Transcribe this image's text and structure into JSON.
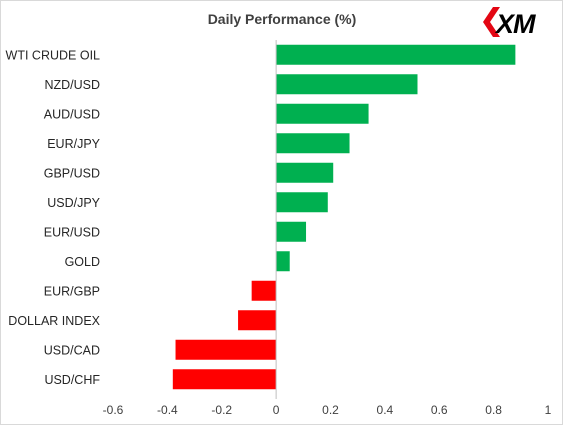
{
  "brand": {
    "logo_text": "XM",
    "accent_color": "#e30613"
  },
  "colors": {
    "positive": "#00b050",
    "negative": "#ff0000",
    "axis": "#bfbfbf"
  },
  "chart_data": {
    "type": "bar",
    "orientation": "horizontal",
    "title": "Daily Performance (%)",
    "xlabel": "",
    "ylabel": "",
    "xlim": [
      -0.6,
      1
    ],
    "xticks": [
      "-0.6",
      "-0.4",
      "-0.2",
      "0",
      "0.2",
      "0.4",
      "0.6",
      "0.8",
      "1"
    ],
    "grid": false,
    "legend": "none",
    "categories": [
      "WTI CRUDE OIL",
      "NZD/USD",
      "AUD/USD",
      "EUR/JPY",
      "GBP/USD",
      "USD/JPY",
      "EUR/USD",
      "GOLD",
      "EUR/GBP",
      "DOLLAR INDEX",
      "USD/CAD",
      "USD/CHF"
    ],
    "values": [
      0.88,
      0.52,
      0.34,
      0.27,
      0.21,
      0.19,
      0.11,
      0.05,
      -0.09,
      -0.14,
      -0.37,
      -0.38
    ]
  }
}
